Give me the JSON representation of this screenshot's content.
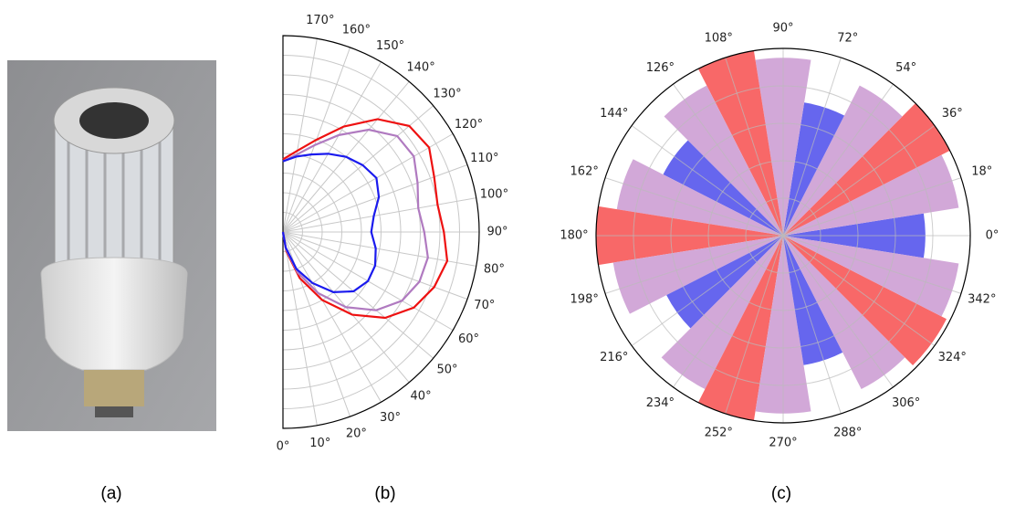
{
  "panel_labels": [
    "(a)",
    "(b)",
    "(c)"
  ],
  "chart_data": [
    {
      "type": "polar-line",
      "theta": [
        0,
        10,
        20,
        30,
        40,
        50,
        60,
        70,
        80,
        90,
        100,
        110,
        120,
        130,
        140,
        150,
        160,
        170,
        180
      ],
      "series": [
        {
          "color": "#ee1111",
          "values": [
            0,
            0.1,
            0.25,
            0.4,
            0.55,
            0.68,
            0.77,
            0.82,
            0.85,
            0.82,
            0.8,
            0.82,
            0.86,
            0.84,
            0.75,
            0.62,
            0.5,
            0.42,
            0.37
          ]
        },
        {
          "color": "#b07ac0",
          "values": [
            0,
            0.09,
            0.22,
            0.36,
            0.5,
            0.62,
            0.7,
            0.74,
            0.75,
            0.72,
            0.7,
            0.73,
            0.77,
            0.76,
            0.68,
            0.57,
            0.47,
            0.4,
            0.36
          ]
        },
        {
          "color": "#1a1aee",
          "values": [
            0,
            0.08,
            0.2,
            0.3,
            0.4,
            0.47,
            0.5,
            0.5,
            0.48,
            0.45,
            0.47,
            0.52,
            0.55,
            0.53,
            0.5,
            0.46,
            0.42,
            0.39,
            0.36
          ]
        }
      ],
      "rlim": [
        0,
        1
      ],
      "rticks": [
        0.1,
        0.2,
        0.3,
        0.4,
        0.5,
        0.6,
        0.7,
        0.8,
        0.9
      ],
      "thetaticks": [
        {
          "value": 0,
          "label": "0°"
        },
        {
          "value": 10,
          "label": "10°"
        },
        {
          "value": 20,
          "label": "20°"
        },
        {
          "value": 30,
          "label": "30°"
        },
        {
          "value": 40,
          "label": "40°"
        },
        {
          "value": 50,
          "label": "50°"
        },
        {
          "value": 60,
          "label": "60°"
        },
        {
          "value": 70,
          "label": "70°"
        },
        {
          "value": 80,
          "label": "80°"
        },
        {
          "value": 90,
          "label": "90°"
        },
        {
          "value": 100,
          "label": "100°"
        },
        {
          "value": 110,
          "label": "110°"
        },
        {
          "value": 120,
          "label": "120°"
        },
        {
          "value": 130,
          "label": "130°"
        },
        {
          "value": 140,
          "label": "140°"
        },
        {
          "value": 150,
          "label": "150°"
        },
        {
          "value": 160,
          "label": "160°"
        },
        {
          "value": 170,
          "label": "170°"
        }
      ],
      "grid": true
    },
    {
      "type": "polar-bar",
      "x": [
        0,
        18,
        36,
        54,
        72,
        90,
        108,
        126,
        144,
        162,
        180,
        198,
        216,
        234,
        252,
        270,
        288,
        306,
        324,
        342
      ],
      "values": [
        0.76,
        0.95,
        1.0,
        0.9,
        0.72,
        0.95,
        1.0,
        0.9,
        0.72,
        0.9,
        1.0,
        0.92,
        0.7,
        0.92,
        1.0,
        0.95,
        0.7,
        0.92,
        0.98,
        0.95
      ],
      "colors": [
        "#6666ee",
        "#d2a8d8",
        "#f86868",
        "#d2a8d8",
        "#6666ee",
        "#d2a8d8",
        "#f86868",
        "#d2a8d8",
        "#6666ee",
        "#d2a8d8",
        "#f86868",
        "#d2a8d8",
        "#6666ee",
        "#d2a8d8",
        "#f86868",
        "#d2a8d8",
        "#6666ee",
        "#d2a8d8",
        "#f86868",
        "#d2a8d8"
      ],
      "rlim": [
        0,
        1
      ],
      "rticks": [
        0.2,
        0.4,
        0.6,
        0.8
      ],
      "thetaticks": [
        {
          "value": 0,
          "label": "0°"
        },
        {
          "value": 18,
          "label": "18°"
        },
        {
          "value": 36,
          "label": "36°"
        },
        {
          "value": 54,
          "label": "54°"
        },
        {
          "value": 72,
          "label": "72°"
        },
        {
          "value": 90,
          "label": "90°"
        },
        {
          "value": 108,
          "label": "108°"
        },
        {
          "value": 126,
          "label": "126°"
        },
        {
          "value": 144,
          "label": "144°"
        },
        {
          "value": 162,
          "label": "162°"
        },
        {
          "value": 180,
          "label": "180°"
        },
        {
          "value": 198,
          "label": "198°"
        },
        {
          "value": 216,
          "label": "216°"
        },
        {
          "value": 234,
          "label": "234°"
        },
        {
          "value": 252,
          "label": "252°"
        },
        {
          "value": 270,
          "label": "270°"
        },
        {
          "value": 288,
          "label": "288°"
        },
        {
          "value": 306,
          "label": "306°"
        },
        {
          "value": 324,
          "label": "324°"
        },
        {
          "value": 342,
          "label": "342°"
        }
      ],
      "grid": true
    }
  ]
}
